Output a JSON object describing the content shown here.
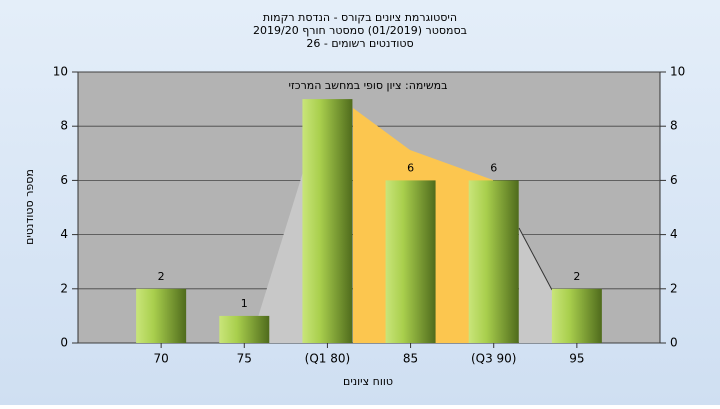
{
  "chart_data": {
    "type": "bar",
    "title": "היסטוגרמת ציונים בקורס - הנדסת רקמות",
    "subtitle": [
      "בסמסטר  (01/2019)  סמסטר חורף 2019/20",
      "סטודנטים רשומים - 26"
    ],
    "annotation": "במשימה: ציון סופי במחשב המרכזי",
    "x_label": "טווח ציונים",
    "y_label": "מספר סטודנטים",
    "categories": [
      "70",
      "75",
      "(Q1 80)",
      "85",
      "(Q3 90)",
      "95"
    ],
    "values": [
      2,
      1,
      9,
      6,
      6,
      2
    ],
    "value_labels": [
      "2",
      "1",
      null,
      "6",
      "6",
      "2"
    ],
    "ylim": [
      0,
      10
    ],
    "yticks": [
      0,
      2,
      4,
      6,
      8,
      10
    ],
    "y2lim": [
      0,
      10
    ],
    "y2ticks": [
      0,
      2,
      4,
      6,
      8,
      10
    ],
    "grid": true
  }
}
